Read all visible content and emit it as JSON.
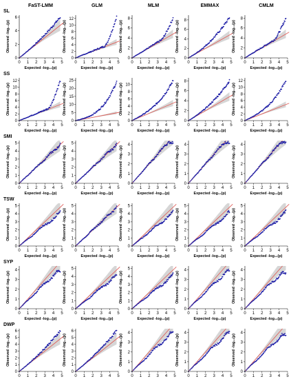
{
  "figure": {
    "colors": {
      "points": "#1f1fa6",
      "expected_line": "#e0605a",
      "confidence_band": "#cfcfcf",
      "axis": "#000000",
      "background": "#ffffff"
    },
    "x_axis_label": "Expected -log₁₀(p)",
    "y_axis_label": "Observed -log₁₀(p)"
  },
  "chart_data": {
    "type": "scatter",
    "layout": "grid of quantile-quantile plots, 6 rows x 5 columns",
    "columns": [
      "FaST-LMM",
      "GLM",
      "MLM",
      "EMMAX",
      "CMLM"
    ],
    "rows": [
      {
        "trait": "SL",
        "panels": [
          {
            "method": "FaST-LMM",
            "xlim": [
              0,
              5
            ],
            "x_ticks": [
              "0",
              "1",
              "2",
              "3",
              "4",
              "5"
            ],
            "ylim": [
              0,
              6.3
            ],
            "y_ticks": [
              "0",
              "2",
              "4",
              "6"
            ],
            "expected_max": 4.8,
            "observed_top": 6.0,
            "shape": "early_rise"
          },
          {
            "method": "GLM",
            "xlim": [
              0,
              5
            ],
            "x_ticks": [
              "0",
              "1",
              "2",
              "3",
              "4",
              "5"
            ],
            "ylim": [
              0,
              13.0
            ],
            "y_ticks": [
              "0",
              "2",
              "4",
              "6",
              "8",
              "10",
              "12"
            ],
            "expected_max": 4.8,
            "observed_top": 12.5,
            "shape": "late_jump"
          },
          {
            "method": "MLM",
            "xlim": [
              0,
              5
            ],
            "x_ticks": [
              "0",
              "1",
              "2",
              "3",
              "4",
              "5"
            ],
            "ylim": [
              0,
              8.6
            ],
            "y_ticks": [
              "0",
              "2",
              "4",
              "6",
              "8"
            ],
            "expected_max": 4.8,
            "observed_top": 8.0,
            "shape": "late_jump"
          },
          {
            "method": "EMMAX",
            "xlim": [
              0,
              5
            ],
            "x_ticks": [
              "0",
              "1",
              "2",
              "3",
              "4",
              "5"
            ],
            "ylim": [
              0,
              9.0
            ],
            "y_ticks": [
              "0",
              "2",
              "4",
              "6",
              "8"
            ],
            "expected_max": 4.8,
            "observed_top": 8.5,
            "shape": "early_rise"
          },
          {
            "method": "CMLM",
            "xlim": [
              0,
              5
            ],
            "x_ticks": [
              "0",
              "1",
              "2",
              "3",
              "4",
              "5"
            ],
            "ylim": [
              0,
              8.6
            ],
            "y_ticks": [
              "0",
              "2",
              "4",
              "6",
              "8"
            ],
            "expected_max": 4.8,
            "observed_top": 8.0,
            "shape": "late_jump"
          }
        ]
      },
      {
        "trait": "SS",
        "panels": [
          {
            "method": "FaST-LMM",
            "xlim": [
              0,
              5
            ],
            "x_ticks": [
              "0",
              "1",
              "2",
              "3",
              "4",
              "5"
            ],
            "ylim": [
              0,
              12.8
            ],
            "y_ticks": [
              "0",
              "2",
              "4",
              "6",
              "8",
              "10",
              "12"
            ],
            "expected_max": 4.8,
            "observed_top": 12.0,
            "shape": "late_jump"
          },
          {
            "method": "GLM",
            "xlim": [
              0,
              5
            ],
            "x_ticks": [
              "0",
              "1",
              "2",
              "3",
              "4",
              "5"
            ],
            "ylim": [
              0,
              26.5
            ],
            "y_ticks": [
              "0",
              "5",
              "10",
              "15",
              "20",
              "25"
            ],
            "expected_max": 4.8,
            "observed_top": 24.0,
            "shape": "inflated"
          },
          {
            "method": "MLM",
            "xlim": [
              0,
              5
            ],
            "x_ticks": [
              "0",
              "1",
              "2",
              "3",
              "4",
              "5"
            ],
            "ylim": [
              0,
              11.8
            ],
            "y_ticks": [
              "0",
              "2",
              "4",
              "6",
              "8",
              "10"
            ],
            "expected_max": 4.8,
            "observed_top": 11.0,
            "shape": "inflated"
          },
          {
            "method": "EMMAX",
            "xlim": [
              0,
              5
            ],
            "x_ticks": [
              "0",
              "1",
              "2",
              "3",
              "4",
              "5"
            ],
            "ylim": [
              0,
              8.6
            ],
            "y_ticks": [
              "0",
              "2",
              "4",
              "6",
              "8"
            ],
            "expected_max": 4.8,
            "observed_top": 8.0,
            "shape": "early_rise"
          },
          {
            "method": "CMLM",
            "xlim": [
              0,
              5
            ],
            "x_ticks": [
              "0",
              "1",
              "2",
              "3",
              "4",
              "5"
            ],
            "ylim": [
              0,
              12.8
            ],
            "y_ticks": [
              "0",
              "2",
              "4",
              "6",
              "8",
              "10",
              "12"
            ],
            "expected_max": 4.8,
            "observed_top": 12.0,
            "shape": "inflated"
          }
        ]
      },
      {
        "trait": "SMI",
        "panels": [
          {
            "method": "FaST-LMM",
            "xlim": [
              0,
              5
            ],
            "x_ticks": [
              "0",
              "1",
              "2",
              "3",
              "4",
              "5"
            ],
            "ylim": [
              0,
              5.3
            ],
            "y_ticks": [
              "0",
              "1",
              "2",
              "3",
              "4",
              "5"
            ],
            "expected_max": 4.8,
            "observed_top": 4.9,
            "shape": "diagonal"
          },
          {
            "method": "GLM",
            "xlim": [
              0,
              5
            ],
            "x_ticks": [
              "0",
              "1",
              "2",
              "3",
              "4",
              "5"
            ],
            "ylim": [
              0,
              5.3
            ],
            "y_ticks": [
              "0",
              "1",
              "2",
              "3",
              "4",
              "5"
            ],
            "expected_max": 4.8,
            "observed_top": 5.0,
            "shape": "diagonal"
          },
          {
            "method": "MLM",
            "xlim": [
              0,
              5
            ],
            "x_ticks": [
              "0",
              "1",
              "2",
              "3",
              "4",
              "5"
            ],
            "ylim": [
              0,
              4.4
            ],
            "y_ticks": [
              "0",
              "1",
              "2",
              "3",
              "4"
            ],
            "expected_max": 4.8,
            "observed_top": 4.2,
            "shape": "diagonal"
          },
          {
            "method": "EMMAX",
            "xlim": [
              0,
              5
            ],
            "x_ticks": [
              "0",
              "1",
              "2",
              "3",
              "4",
              "5"
            ],
            "ylim": [
              0,
              4.4
            ],
            "y_ticks": [
              "0",
              "1",
              "2",
              "3",
              "4"
            ],
            "expected_max": 4.8,
            "observed_top": 4.2,
            "shape": "diagonal"
          },
          {
            "method": "CMLM",
            "xlim": [
              0,
              5
            ],
            "x_ticks": [
              "0",
              "1",
              "2",
              "3",
              "4",
              "5"
            ],
            "ylim": [
              0,
              4.4
            ],
            "y_ticks": [
              "0",
              "1",
              "2",
              "3",
              "4"
            ],
            "expected_max": 4.8,
            "observed_top": 4.2,
            "shape": "diagonal"
          }
        ]
      },
      {
        "trait": "TSW",
        "panels": [
          {
            "method": "FaST-LMM",
            "xlim": [
              0,
              5
            ],
            "x_ticks": [
              "0",
              "1",
              "2",
              "3",
              "4",
              "5"
            ],
            "ylim": [
              0,
              5.3
            ],
            "y_ticks": [
              "0",
              "1",
              "2",
              "3",
              "4",
              "5"
            ],
            "expected_max": 4.8,
            "observed_top": 4.6,
            "shape": "below"
          },
          {
            "method": "GLM",
            "xlim": [
              0,
              5
            ],
            "x_ticks": [
              "0",
              "1",
              "2",
              "3",
              "4",
              "5"
            ],
            "ylim": [
              0,
              5.3
            ],
            "y_ticks": [
              "0",
              "1",
              "2",
              "3",
              "4",
              "5"
            ],
            "expected_max": 4.8,
            "observed_top": 4.8,
            "shape": "diagonal"
          },
          {
            "method": "MLM",
            "xlim": [
              0,
              5
            ],
            "x_ticks": [
              "0",
              "1",
              "2",
              "3",
              "4",
              "5"
            ],
            "ylim": [
              0,
              5.3
            ],
            "y_ticks": [
              "0",
              "1",
              "2",
              "3",
              "4",
              "5"
            ],
            "expected_max": 4.8,
            "observed_top": 4.8,
            "shape": "below"
          },
          {
            "method": "EMMAX",
            "xlim": [
              0,
              5
            ],
            "x_ticks": [
              "0",
              "1",
              "2",
              "3",
              "4",
              "5"
            ],
            "ylim": [
              0,
              5.3
            ],
            "y_ticks": [
              "0",
              "1",
              "2",
              "3",
              "4",
              "5"
            ],
            "expected_max": 4.8,
            "observed_top": 4.7,
            "shape": "below"
          },
          {
            "method": "CMLM",
            "xlim": [
              0,
              5
            ],
            "x_ticks": [
              "0",
              "1",
              "2",
              "3",
              "4",
              "5"
            ],
            "ylim": [
              0,
              5.3
            ],
            "y_ticks": [
              "0",
              "1",
              "2",
              "3",
              "4",
              "5"
            ],
            "expected_max": 4.8,
            "observed_top": 4.6,
            "shape": "below"
          }
        ]
      },
      {
        "trait": "SYP",
        "panels": [
          {
            "method": "FaST-LMM",
            "xlim": [
              0,
              5
            ],
            "x_ticks": [
              "0",
              "1",
              "2",
              "3",
              "4",
              "5"
            ],
            "ylim": [
              0,
              4.4
            ],
            "y_ticks": [
              "0",
              "1",
              "2",
              "3",
              "4"
            ],
            "expected_max": 4.8,
            "observed_top": 3.9,
            "shape": "below"
          },
          {
            "method": "GLM",
            "xlim": [
              0,
              5
            ],
            "x_ticks": [
              "0",
              "1",
              "2",
              "3",
              "4",
              "5"
            ],
            "ylim": [
              0,
              5.3
            ],
            "y_ticks": [
              "0",
              "1",
              "2",
              "3",
              "4",
              "5"
            ],
            "expected_max": 4.8,
            "observed_top": 4.9,
            "shape": "below"
          },
          {
            "method": "MLM",
            "xlim": [
              0,
              5
            ],
            "x_ticks": [
              "0",
              "1",
              "2",
              "3",
              "4",
              "5"
            ],
            "ylim": [
              0,
              5.3
            ],
            "y_ticks": [
              "0",
              "1",
              "2",
              "3",
              "4",
              "5"
            ],
            "expected_max": 4.8,
            "observed_top": 4.5,
            "shape": "below"
          },
          {
            "method": "EMMAX",
            "xlim": [
              0,
              5
            ],
            "x_ticks": [
              "0",
              "1",
              "2",
              "3",
              "4",
              "5"
            ],
            "ylim": [
              0,
              4.4
            ],
            "y_ticks": [
              "0",
              "1",
              "2",
              "3",
              "4"
            ],
            "expected_max": 4.8,
            "observed_top": 4.0,
            "shape": "below"
          },
          {
            "method": "CMLM",
            "xlim": [
              0,
              5
            ],
            "x_ticks": [
              "0",
              "1",
              "2",
              "3",
              "4",
              "5"
            ],
            "ylim": [
              0,
              4.4
            ],
            "y_ticks": [
              "0",
              "1",
              "2",
              "3",
              "4"
            ],
            "expected_max": 4.8,
            "observed_top": 3.7,
            "shape": "below"
          }
        ]
      },
      {
        "trait": "DWP",
        "panels": [
          {
            "method": "FaST-LMM",
            "xlim": [
              0,
              5
            ],
            "x_ticks": [
              "0",
              "1",
              "2",
              "3",
              "4",
              "5"
            ],
            "ylim": [
              0,
              6.3
            ],
            "y_ticks": [
              "0",
              "1",
              "2",
              "3",
              "4",
              "5",
              "6"
            ],
            "expected_max": 4.8,
            "observed_top": 6.0,
            "shape": "early_rise"
          },
          {
            "method": "GLM",
            "xlim": [
              0,
              5
            ],
            "x_ticks": [
              "0",
              "1",
              "2",
              "3",
              "4",
              "5"
            ],
            "ylim": [
              0,
              6.3
            ],
            "y_ticks": [
              "0",
              "1",
              "2",
              "3",
              "4",
              "5",
              "6"
            ],
            "expected_max": 4.8,
            "observed_top": 6.0,
            "shape": "early_rise"
          },
          {
            "method": "MLM",
            "xlim": [
              0,
              5
            ],
            "x_ticks": [
              "0",
              "1",
              "2",
              "3",
              "4",
              "5"
            ],
            "ylim": [
              0,
              4.4
            ],
            "y_ticks": [
              "0",
              "1",
              "2",
              "3",
              "4"
            ],
            "expected_max": 4.8,
            "observed_top": 4.0,
            "shape": "below"
          },
          {
            "method": "EMMAX",
            "xlim": [
              0,
              5
            ],
            "x_ticks": [
              "0",
              "1",
              "2",
              "3",
              "4",
              "5"
            ],
            "ylim": [
              0,
              4.4
            ],
            "y_ticks": [
              "0",
              "1",
              "2",
              "3",
              "4"
            ],
            "expected_max": 4.8,
            "observed_top": 4.0,
            "shape": "below"
          },
          {
            "method": "CMLM",
            "xlim": [
              0,
              5
            ],
            "x_ticks": [
              "0",
              "1",
              "2",
              "3",
              "4",
              "5"
            ],
            "ylim": [
              0,
              4.4
            ],
            "y_ticks": [
              "0",
              "1",
              "2",
              "3",
              "4"
            ],
            "expected_max": 4.8,
            "observed_top": 3.8,
            "shape": "below"
          }
        ]
      }
    ]
  }
}
